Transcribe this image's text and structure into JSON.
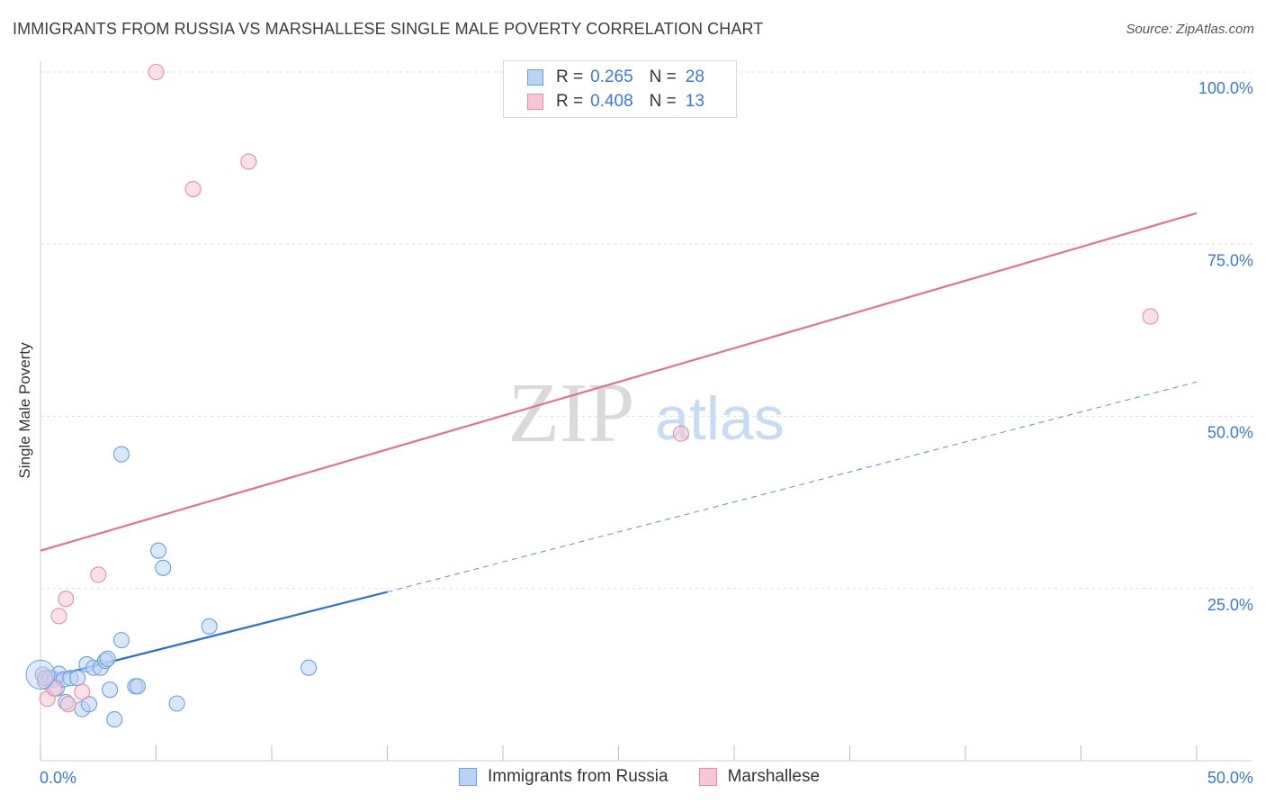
{
  "header": {
    "title": "IMMIGRANTS FROM RUSSIA VS MARSHALLESE SINGLE MALE POVERTY CORRELATION CHART",
    "source": "Source: ZipAtlas.com"
  },
  "watermark": {
    "zip": "ZIP",
    "atlas": "atlas"
  },
  "colors": {
    "blue_fill": "#b9d3f5",
    "blue_stroke": "#6a9ee0",
    "blue_line": "#2d72d2",
    "pink_fill": "#f8c6d6",
    "pink_stroke": "#e68aa8",
    "pink_line": "#e07096",
    "value_text": "#3a78d0"
  },
  "legend": {
    "rows": [
      {
        "r_label": "R =",
        "r_value": "0.265",
        "n_label": "N =",
        "n_value": "28"
      },
      {
        "r_label": "R =",
        "r_value": "0.408",
        "n_label": "N =",
        "n_value": "13"
      }
    ]
  },
  "chart_data": {
    "type": "scatter",
    "title": "IMMIGRANTS FROM RUSSIA VS MARSHALLESE SINGLE MALE POVERTY CORRELATION CHART",
    "xlabel": "",
    "ylabel": "Single Male Poverty",
    "xlim": [
      0,
      50
    ],
    "ylim": [
      0,
      100
    ],
    "x_tick_labels": [
      "0.0%",
      "50.0%"
    ],
    "y_tick_labels": [
      "100.0%",
      "75.0%",
      "50.0%",
      "25.0%"
    ],
    "y_tick_values": [
      100,
      75,
      50,
      25
    ],
    "series": [
      {
        "name": "Immigrants from Russia",
        "color": "blue",
        "points": [
          [
            0.1,
            12.5
          ],
          [
            0.2,
            11.5
          ],
          [
            0.4,
            12.0
          ],
          [
            0.6,
            11.8
          ],
          [
            0.7,
            10.5
          ],
          [
            0.8,
            12.6
          ],
          [
            1.0,
            11.8
          ],
          [
            1.1,
            8.5
          ],
          [
            1.3,
            12.0
          ],
          [
            1.6,
            12.0
          ],
          [
            1.8,
            7.5
          ],
          [
            2.0,
            14.0
          ],
          [
            2.1,
            8.2
          ],
          [
            2.3,
            13.5
          ],
          [
            2.6,
            13.5
          ],
          [
            2.8,
            14.5
          ],
          [
            2.9,
            14.8
          ],
          [
            3.0,
            10.3
          ],
          [
            3.2,
            6.0
          ],
          [
            3.5,
            17.5
          ],
          [
            3.5,
            44.5
          ],
          [
            4.1,
            10.8
          ],
          [
            4.2,
            10.8
          ],
          [
            5.1,
            30.5
          ],
          [
            5.3,
            28.0
          ],
          [
            5.9,
            8.3
          ],
          [
            7.3,
            19.5
          ],
          [
            11.6,
            13.5
          ]
        ],
        "trend": {
          "x0": 0,
          "y0": 11.8,
          "x1": 15,
          "y1": 24.5,
          "dashed_to_x": 50,
          "dashed_to_y": 55.0
        }
      },
      {
        "name": "Marshallese",
        "color": "pink",
        "points": [
          [
            0.3,
            9.0
          ],
          [
            0.6,
            10.5
          ],
          [
            0.8,
            21.0
          ],
          [
            1.1,
            23.5
          ],
          [
            1.2,
            8.2
          ],
          [
            1.8,
            10.0
          ],
          [
            2.5,
            27.0
          ],
          [
            5.0,
            100.0
          ],
          [
            6.6,
            83.0
          ],
          [
            9.0,
            87.0
          ],
          [
            27.7,
            47.5
          ],
          [
            48.0,
            64.5
          ],
          [
            0.2,
            12.0
          ]
        ],
        "trend": {
          "x0": 0,
          "y0": 30.5,
          "x1": 50,
          "y1": 79.5
        }
      }
    ],
    "grid": true,
    "legend_position": "top-center"
  }
}
